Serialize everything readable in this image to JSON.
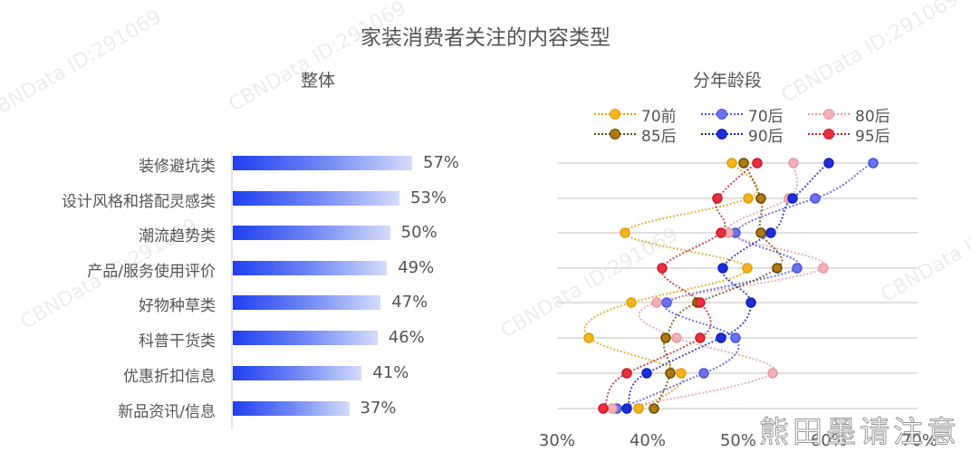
{
  "title": "家装消费者关注的内容类型",
  "bar_section": {
    "subtitle": "整体"
  },
  "line_section": {
    "subtitle": "分年龄段"
  },
  "watermark": "CBNData ID:291069",
  "corner_watermark": "熊田墨请注意",
  "legend": [
    {
      "name": "70前",
      "color": "#f4b41a",
      "stroke": "#e0a010"
    },
    {
      "name": "70后",
      "color": "#6a73ee",
      "stroke": "#4a55e0"
    },
    {
      "name": "80后",
      "color": "#f3b0b6",
      "stroke": "#eb9aa2"
    },
    {
      "name": "85后",
      "color": "#b07a0e",
      "stroke": "#6b4a06"
    },
    {
      "name": "90后",
      "color": "#1d2fd9",
      "stroke": "#1424b8"
    },
    {
      "name": "95后",
      "color": "#e8303e",
      "stroke": "#c91f2c"
    }
  ],
  "chart_data": [
    {
      "type": "bar",
      "orientation": "horizontal",
      "title": "整体",
      "categories": [
        "装修避坑类",
        "设计风格和搭配灵感类",
        "潮流趋势类",
        "产品/服务使用评价",
        "好物种草类",
        "科普干货类",
        "优惠折扣信息",
        "新品资讯/信息"
      ],
      "values": [
        57,
        53,
        50,
        49,
        47,
        46,
        41,
        37
      ],
      "labels": [
        "57%",
        "53%",
        "50%",
        "49%",
        "47%",
        "46%",
        "41%",
        "37%"
      ],
      "unit": "%",
      "bar_color": "#1f3ff0"
    },
    {
      "type": "line",
      "title": "分年龄段",
      "orientation": "horizontal-values",
      "categories": [
        "装修避坑类",
        "设计风格和搭配灵感类",
        "潮流趋势类",
        "产品/服务使用评价",
        "好物种草类",
        "科普干货类",
        "优惠折扣信息",
        "新品资讯/信息"
      ],
      "xlim": [
        30,
        70
      ],
      "x_ticks": [
        "30%",
        "40%",
        "50%",
        "60%",
        "70%"
      ],
      "grid": true,
      "legend_position": "top",
      "series": [
        {
          "name": "70前",
          "values": [
            49.3,
            51.1,
            37.5,
            51.0,
            38.2,
            33.5,
            43.7,
            39.0
          ]
        },
        {
          "name": "70后",
          "values": [
            64.9,
            58.5,
            49.7,
            56.5,
            42.1,
            49.7,
            46.2,
            36.6
          ]
        },
        {
          "name": "80后",
          "values": [
            56.1,
            55.6,
            48.9,
            59.4,
            41.0,
            43.2,
            53.8,
            36.1
          ]
        },
        {
          "name": "85后",
          "values": [
            50.6,
            52.5,
            52.5,
            54.3,
            45.5,
            42.0,
            42.5,
            40.7
          ]
        },
        {
          "name": "90后",
          "values": [
            60.0,
            56.0,
            53.6,
            48.3,
            51.4,
            48.1,
            39.9,
            37.7
          ]
        },
        {
          "name": "95后",
          "values": [
            52.1,
            47.7,
            48.1,
            41.6,
            45.8,
            45.8,
            37.7,
            35.1
          ]
        }
      ]
    }
  ]
}
